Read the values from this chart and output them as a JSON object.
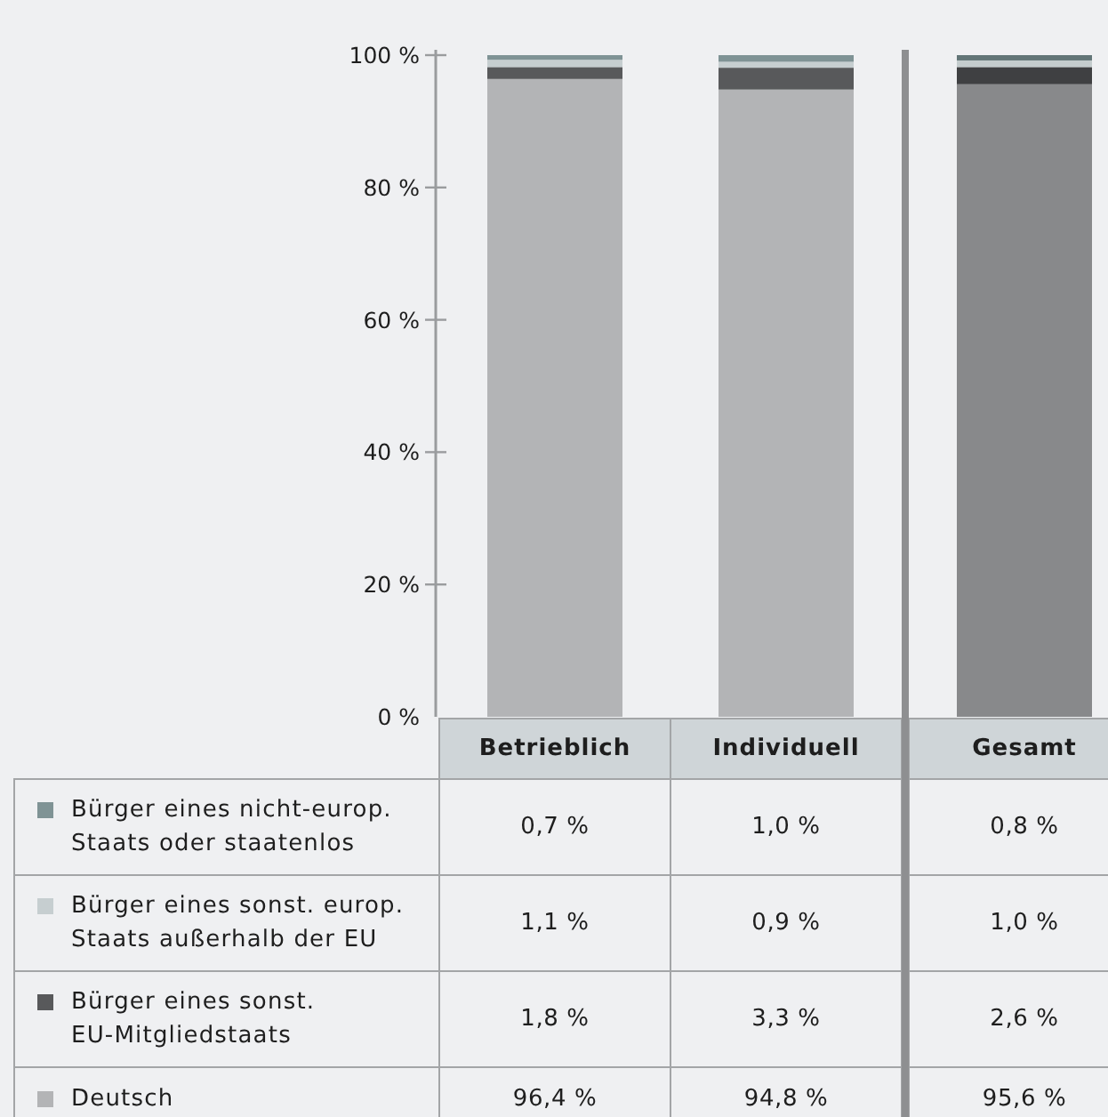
{
  "chart_data": {
    "type": "bar",
    "stacked": true,
    "categories": [
      "Betrieblich",
      "Individuell",
      "Gesamt"
    ],
    "series": [
      {
        "name": "Deutsch",
        "color": "#b3b4b6",
        "colors": [
          "#b3b4b6",
          "#b3b4b6",
          "#88898b"
        ],
        "values": [
          96.4,
          94.8,
          95.6
        ],
        "value_labels": [
          "96,4 %",
          "94,8 %",
          "95,6 %"
        ]
      },
      {
        "name": "Bürger eines sonst. EU-Mitgliedstaats",
        "color": "#58595b",
        "colors": [
          "#58595b",
          "#58595b",
          "#3f4042"
        ],
        "values": [
          1.8,
          3.3,
          2.6
        ],
        "value_labels": [
          "1,8 %",
          "3,3 %",
          "2,6 %"
        ]
      },
      {
        "name": "Bürger eines sonst. europ. Staats außerhalb der EU",
        "color": "#c6ced0",
        "colors": [
          "#c6ced0",
          "#c6ced0",
          "#c4cccd"
        ],
        "values": [
          1.1,
          0.9,
          1.0
        ],
        "value_labels": [
          "1,1 %",
          "0,9 %",
          "1,0 %"
        ]
      },
      {
        "name": "Bürger eines nicht-europ. Staats oder staatenlos",
        "color": "#7f9395",
        "colors": [
          "#7f9395",
          "#7f9395",
          "#627577"
        ],
        "values": [
          0.7,
          1.0,
          0.8
        ],
        "value_labels": [
          "0,7 %",
          "1,0 %",
          "0,8 %"
        ]
      }
    ],
    "ylim": [
      0,
      100
    ],
    "yticks": [
      {
        "value": 0,
        "label": "0 %"
      },
      {
        "value": 20,
        "label": "20 %"
      },
      {
        "value": 40,
        "label": "40 %"
      },
      {
        "value": 60,
        "label": "60 %"
      },
      {
        "value": 80,
        "label": "80 %"
      },
      {
        "value": 100,
        "label": "100 %"
      }
    ],
    "legend": "bottom",
    "grid": false
  }
}
